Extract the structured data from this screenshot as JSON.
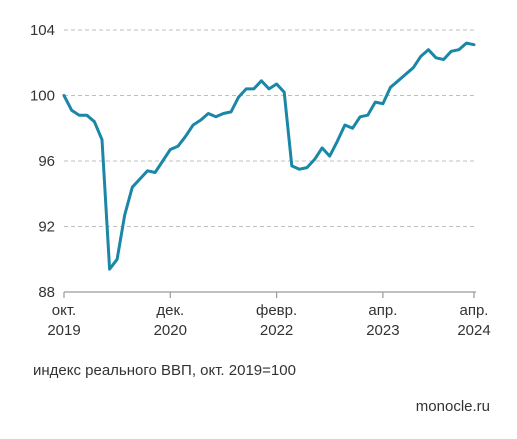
{
  "chart_data": {
    "type": "line",
    "ylim": [
      88,
      104
    ],
    "yticks": [
      88,
      92,
      96,
      100,
      104
    ],
    "xrange": [
      0,
      54
    ],
    "grid": true,
    "xticks": [
      {
        "x": 0,
        "line1": "окт.",
        "line2": "2019"
      },
      {
        "x": 14,
        "line1": "дек.",
        "line2": "2020"
      },
      {
        "x": 28,
        "line1": "февр.",
        "line2": "2022"
      },
      {
        "x": 42,
        "line1": "апр.",
        "line2": "2023"
      },
      {
        "x": 54,
        "line1": "апр.",
        "line2": "2024"
      }
    ],
    "series": [
      {
        "color": "#1a87a6",
        "x": [
          0,
          1,
          2,
          3,
          4,
          5,
          6,
          7,
          8,
          9,
          10,
          11,
          12,
          13,
          14,
          15,
          16,
          17,
          18,
          19,
          20,
          21,
          22,
          23,
          24,
          25,
          26,
          27,
          28,
          29,
          30,
          31,
          32,
          33,
          34,
          35,
          36,
          37,
          38,
          39,
          40,
          41,
          42,
          43,
          44,
          45,
          46,
          47,
          48,
          49,
          50,
          51,
          52,
          53,
          54
        ],
        "values": [
          100.0,
          99.1,
          98.8,
          98.8,
          98.4,
          97.3,
          89.4,
          90.0,
          92.7,
          94.4,
          94.9,
          95.4,
          95.3,
          96.0,
          96.7,
          96.9,
          97.5,
          98.2,
          98.5,
          98.9,
          98.7,
          98.9,
          99.0,
          99.9,
          100.4,
          100.4,
          100.9,
          100.4,
          100.7,
          100.2,
          95.7,
          95.5,
          95.6,
          96.1,
          96.8,
          96.3,
          97.2,
          98.2,
          98.0,
          98.7,
          98.8,
          99.6,
          99.5,
          100.5,
          100.9,
          101.3,
          101.7,
          102.4,
          102.8,
          102.3,
          102.2,
          102.7,
          102.8,
          103.2,
          103.1
        ]
      }
    ]
  },
  "caption": "индекс реального ВВП, окт. 2019=100",
  "source": "monocle.ru"
}
